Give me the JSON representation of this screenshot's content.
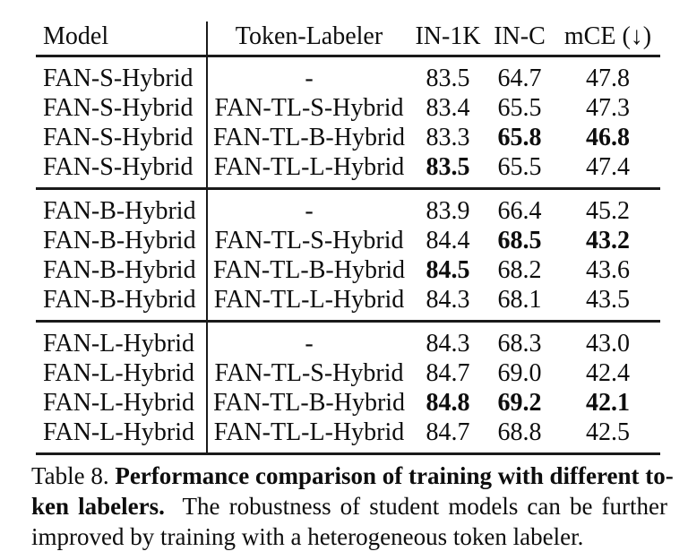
{
  "table": {
    "headers": [
      "Model",
      "Token-Labeler",
      "IN-1K",
      "IN-C",
      "mCE (↓)"
    ],
    "groups": [
      {
        "rows": [
          {
            "model": "FAN-S-Hybrid",
            "labeler": "-",
            "values": [
              {
                "text": "83.5",
                "bold": false
              },
              {
                "text": "64.7",
                "bold": false
              },
              {
                "text": "47.8",
                "bold": false
              }
            ]
          },
          {
            "model": "FAN-S-Hybrid",
            "labeler": "FAN-TL-S-Hybrid",
            "values": [
              {
                "text": "83.4",
                "bold": false
              },
              {
                "text": "65.5",
                "bold": false
              },
              {
                "text": "47.3",
                "bold": false
              }
            ]
          },
          {
            "model": "FAN-S-Hybrid",
            "labeler": "FAN-TL-B-Hybrid",
            "values": [
              {
                "text": "83.3",
                "bold": false
              },
              {
                "text": "65.8",
                "bold": true
              },
              {
                "text": "46.8",
                "bold": true
              }
            ]
          },
          {
            "model": "FAN-S-Hybrid",
            "labeler": "FAN-TL-L-Hybrid",
            "values": [
              {
                "text": "83.5",
                "bold": true
              },
              {
                "text": "65.5",
                "bold": false
              },
              {
                "text": "47.4",
                "bold": false
              }
            ]
          }
        ]
      },
      {
        "rows": [
          {
            "model": "FAN-B-Hybrid",
            "labeler": "-",
            "values": [
              {
                "text": "83.9",
                "bold": false
              },
              {
                "text": "66.4",
                "bold": false
              },
              {
                "text": "45.2",
                "bold": false
              }
            ]
          },
          {
            "model": "FAN-B-Hybrid",
            "labeler": "FAN-TL-S-Hybrid",
            "values": [
              {
                "text": "84.4",
                "bold": false
              },
              {
                "text": "68.5",
                "bold": true
              },
              {
                "text": "43.2",
                "bold": true
              }
            ]
          },
          {
            "model": "FAN-B-Hybrid",
            "labeler": "FAN-TL-B-Hybrid",
            "values": [
              {
                "text": "84.5",
                "bold": true
              },
              {
                "text": "68.2",
                "bold": false
              },
              {
                "text": "43.6",
                "bold": false
              }
            ]
          },
          {
            "model": "FAN-B-Hybrid",
            "labeler": "FAN-TL-L-Hybrid",
            "values": [
              {
                "text": "84.3",
                "bold": false
              },
              {
                "text": "68.1",
                "bold": false
              },
              {
                "text": "43.5",
                "bold": false
              }
            ]
          }
        ]
      },
      {
        "rows": [
          {
            "model": "FAN-L-Hybrid",
            "labeler": "-",
            "values": [
              {
                "text": "84.3",
                "bold": false
              },
              {
                "text": "68.3",
                "bold": false
              },
              {
                "text": "43.0",
                "bold": false
              }
            ]
          },
          {
            "model": "FAN-L-Hybrid",
            "labeler": "FAN-TL-S-Hybrid",
            "values": [
              {
                "text": "84.7",
                "bold": false
              },
              {
                "text": "69.0",
                "bold": false
              },
              {
                "text": "42.4",
                "bold": false
              }
            ]
          },
          {
            "model": "FAN-L-Hybrid",
            "labeler": "FAN-TL-B-Hybrid",
            "values": [
              {
                "text": "84.8",
                "bold": true
              },
              {
                "text": "69.2",
                "bold": true
              },
              {
                "text": "42.1",
                "bold": true
              }
            ]
          },
          {
            "model": "FAN-L-Hybrid",
            "labeler": "FAN-TL-L-Hybrid",
            "values": [
              {
                "text": "84.7",
                "bold": false
              },
              {
                "text": "68.8",
                "bold": false
              },
              {
                "text": "42.5",
                "bold": false
              }
            ]
          }
        ]
      }
    ]
  },
  "caption": {
    "line1_regular": "Table 8.",
    "line1_bold": "Performance comparison of training with different to-",
    "line2_bold": "ken labelers.",
    "line2_regular": "The robustness of student models can be further",
    "line3": "improved by training with a heterogeneous token labeler."
  }
}
